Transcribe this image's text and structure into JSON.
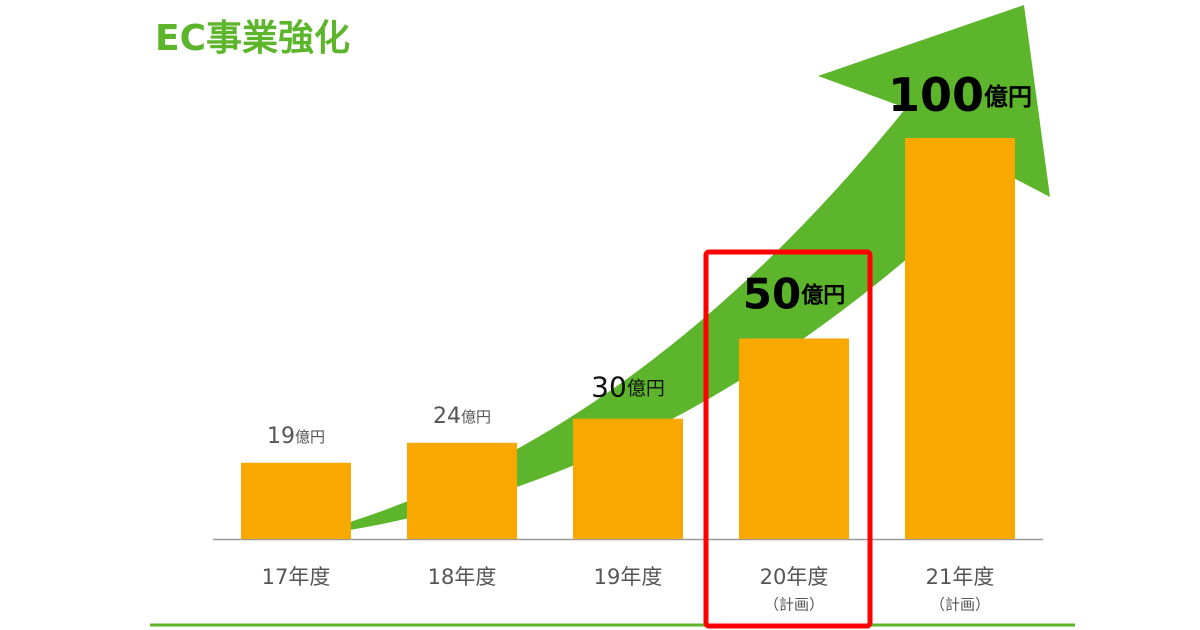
{
  "chart_data": {
    "type": "bar",
    "title": "EC事業強化",
    "categories": [
      "17年度",
      "18年度",
      "19年度",
      "20年度",
      "21年度"
    ],
    "category_notes": [
      null,
      null,
      null,
      "（計画）",
      "（計画）"
    ],
    "values": [
      19,
      24,
      30,
      50,
      100
    ],
    "value_labels": [
      "19億円",
      "24億円",
      "30億円",
      "50億円",
      "100億円"
    ],
    "color": "#f9a800",
    "ylim": [
      0,
      100
    ]
  }
}
